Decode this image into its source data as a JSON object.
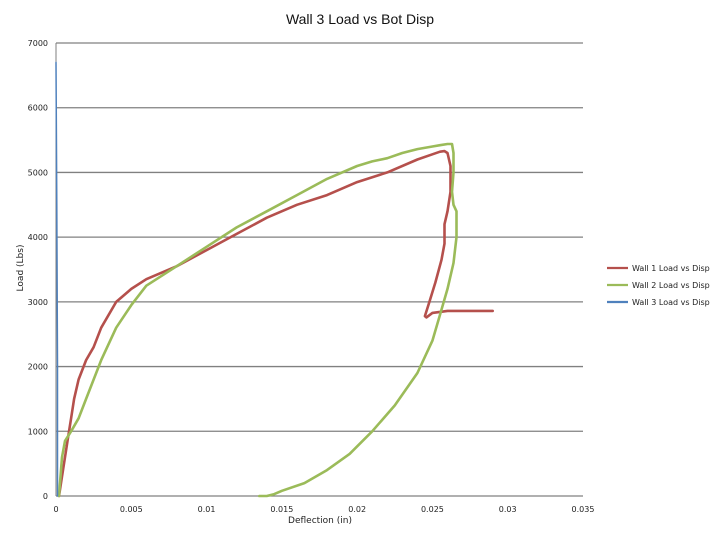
{
  "chart_data": {
    "type": "line",
    "title": "Wall 3 Load vs Bot Disp",
    "xlabel": "Deflection (in)",
    "ylabel": "Load (Lbs)",
    "xlim": [
      0,
      0.035
    ],
    "ylim": [
      0,
      7000
    ],
    "xticks": [
      0,
      0.005,
      0.01,
      0.015,
      0.02,
      0.025,
      0.03,
      0.035
    ],
    "xtick_labels": [
      "0",
      "0.005",
      "0.01",
      "0.015",
      "0.02",
      "0.025",
      "0.03",
      "0.035"
    ],
    "yticks": [
      0,
      1000,
      2000,
      3000,
      4000,
      5000,
      6000,
      7000
    ],
    "ytick_labels": [
      "0",
      "1000",
      "2000",
      "3000",
      "4000",
      "5000",
      "6000",
      "7000"
    ],
    "grid": "horizontal",
    "legend": "right",
    "series": [
      {
        "name": "Wall 1 Load vs Disp",
        "color": "#b5504c",
        "x": [
          0.0002,
          0.0004,
          0.0006,
          0.0008,
          0.001,
          0.0012,
          0.0015,
          0.002,
          0.0025,
          0.003,
          0.004,
          0.005,
          0.006,
          0.008,
          0.01,
          0.012,
          0.014,
          0.016,
          0.018,
          0.02,
          0.022,
          0.024,
          0.025,
          0.0255,
          0.0258,
          0.026,
          0.0262,
          0.0262,
          0.026,
          0.0258,
          0.0258,
          0.0256,
          0.0252,
          0.0248,
          0.0245,
          0.0246,
          0.025,
          0.026,
          0.027,
          0.028,
          0.029
        ],
        "y": [
          0,
          300,
          600,
          900,
          1200,
          1500,
          1800,
          2100,
          2300,
          2600,
          3000,
          3200,
          3350,
          3550,
          3800,
          4050,
          4300,
          4500,
          4650,
          4850,
          5000,
          5200,
          5280,
          5320,
          5330,
          5300,
          5100,
          4700,
          4400,
          4200,
          3900,
          3650,
          3300,
          3000,
          2780,
          2760,
          2830,
          2860,
          2860,
          2860,
          2860
        ]
      },
      {
        "name": "Wall 2 Load vs Disp",
        "color": "#9bbb59",
        "x": [
          0.0002,
          0.0003,
          0.0004,
          0.0006,
          0.001,
          0.0015,
          0.002,
          0.003,
          0.004,
          0.005,
          0.006,
          0.008,
          0.01,
          0.012,
          0.014,
          0.016,
          0.018,
          0.02,
          0.021,
          0.022,
          0.023,
          0.024,
          0.025,
          0.0255,
          0.026,
          0.0263,
          0.0264,
          0.0264,
          0.0263,
          0.0264,
          0.0266,
          0.0266,
          0.0264,
          0.026,
          0.0255,
          0.025,
          0.024,
          0.0225,
          0.021,
          0.0195,
          0.018,
          0.0165,
          0.015,
          0.0145,
          0.014,
          0.0135
        ],
        "y": [
          0,
          300,
          600,
          850,
          1000,
          1200,
          1500,
          2100,
          2600,
          2950,
          3250,
          3550,
          3850,
          4150,
          4400,
          4650,
          4900,
          5100,
          5170,
          5220,
          5300,
          5360,
          5400,
          5420,
          5440,
          5440,
          5300,
          5000,
          4700,
          4500,
          4400,
          4000,
          3600,
          3200,
          2800,
          2400,
          1900,
          1400,
          1000,
          650,
          400,
          200,
          80,
          30,
          0,
          0
        ]
      },
      {
        "name": "Wall 3 Load vs Disp",
        "color": "#4f81bd",
        "x": [
          0.0001,
          0.0001,
          5e-05,
          0.0
        ],
        "y": [
          0,
          2000,
          4500,
          6700
        ]
      }
    ]
  }
}
